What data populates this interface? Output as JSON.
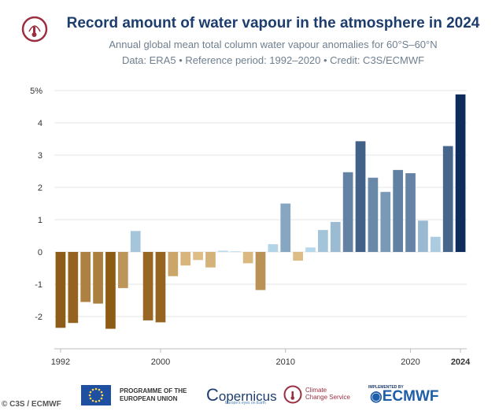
{
  "title": "Record amount of water vapour in the atmosphere in 2024",
  "subtitle": "Annual global mean total column water vapour anomalies for 60°S–60°N",
  "credit_line": "Data: ERA5 • Reference period: 1992–2020 • Credit: C3S/ECMWF",
  "logos": {
    "eu_label": "PROGRAMME OF THE EUROPEAN UNION",
    "copernicus_label": "opernicus",
    "copernicus_tagline": "Europe's eyes on Earth",
    "c3s_label_line1": "Climate",
    "c3s_label_line2": "Change Service",
    "ecmwf_implemented": "IMPLEMENTED BY",
    "ecmwf_label": "ECMWF"
  },
  "watermark": "© C3S / ECMWF",
  "colors": {
    "title": "#1d3d6e",
    "negative_light": "#e7c893",
    "negative_dark": "#8d5a14",
    "positive_light": "#bcdcee",
    "positive_dark": "#0d2c5c"
  },
  "chart_data": {
    "type": "bar",
    "x": [
      1992,
      1993,
      1994,
      1995,
      1996,
      1997,
      1998,
      1999,
      2000,
      2001,
      2002,
      2003,
      2004,
      2005,
      2006,
      2007,
      2008,
      2009,
      2010,
      2011,
      2012,
      2013,
      2014,
      2015,
      2016,
      2017,
      2018,
      2019,
      2020,
      2021,
      2022,
      2023,
      2024
    ],
    "values": [
      -2.35,
      -2.2,
      -1.55,
      -1.6,
      -2.38,
      -1.12,
      0.65,
      -2.12,
      -2.18,
      -0.75,
      -0.42,
      -0.25,
      -0.48,
      0.04,
      0.02,
      -0.35,
      -1.18,
      0.24,
      1.5,
      -0.27,
      0.14,
      0.68,
      0.93,
      2.47,
      3.43,
      2.3,
      1.86,
      2.54,
      2.44,
      0.97,
      0.47,
      3.28,
      4.88
    ],
    "yticks": [
      "-2",
      "-1",
      "0",
      "1",
      "2",
      "3",
      "4",
      "5%"
    ],
    "ylim": [
      -3,
      5
    ],
    "xticks": [
      "1992",
      "2000",
      "2010",
      "2020",
      "2024"
    ],
    "grid": true
  }
}
